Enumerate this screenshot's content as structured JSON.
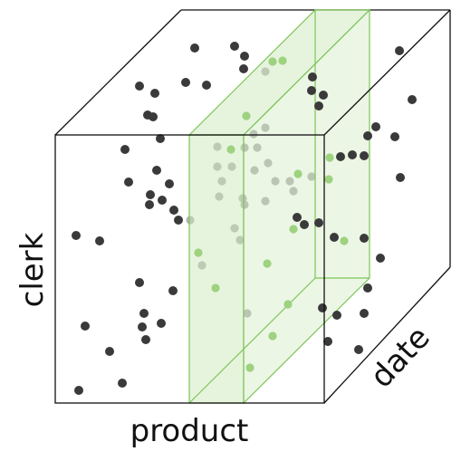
{
  "axes": {
    "x_label": "product",
    "y_label": "clerk",
    "z_label": "date"
  },
  "colors": {
    "edge": "#111111",
    "point": "#3a3a3a",
    "slice_edge": "#7cc558",
    "slice_fill": "#c8e6b4",
    "point_in_slice": "#9dd27f",
    "point_behind_slice": "#b4b4b4"
  }
}
